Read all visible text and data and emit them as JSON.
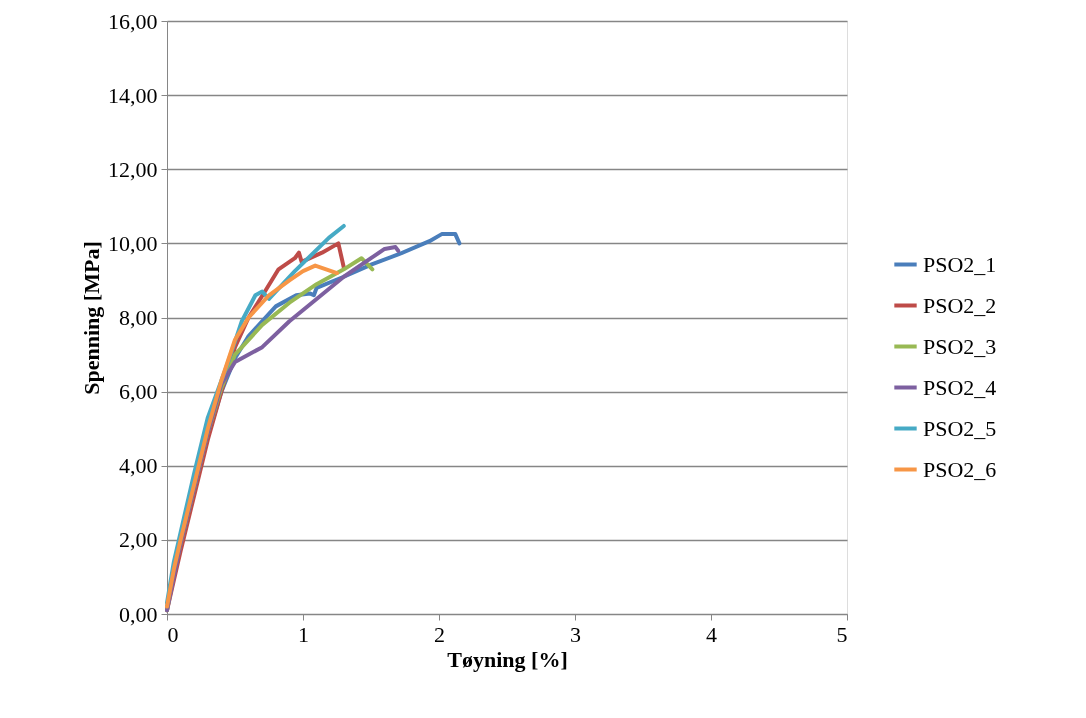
{
  "chart_data": {
    "type": "line",
    "xlabel": "Tøyning [%]",
    "ylabel": "Spenning [MPa]",
    "xlim": [
      0,
      5
    ],
    "xticks": [
      0,
      1,
      2,
      3,
      4,
      5
    ],
    "ylim": [
      0,
      16
    ],
    "yticks": [
      {
        "value": 0,
        "label": "0,00"
      },
      {
        "value": 2,
        "label": "2,00"
      },
      {
        "value": 4,
        "label": "4,00"
      },
      {
        "value": 6,
        "label": "6,00"
      },
      {
        "value": 8,
        "label": "8,00"
      },
      {
        "value": 10,
        "label": "10,00"
      },
      {
        "value": 12,
        "label": "12,00"
      },
      {
        "value": 14,
        "label": "14,00"
      },
      {
        "value": 16,
        "label": "16,00"
      }
    ],
    "grid": "y",
    "legend": "right",
    "marker": "none",
    "line_style": "solid",
    "series": [
      {
        "name": "PSO2_1",
        "color": "#4a7ebb",
        "x": [
          0,
          0.05,
          0.1,
          0.2,
          0.3,
          0.4,
          0.5,
          0.6,
          0.8,
          0.95,
          1.05,
          1.08,
          1.1,
          1.3,
          1.51,
          1.7,
          1.93,
          2.02,
          2.12,
          2.15
        ],
        "values": [
          0.2,
          1.0,
          1.8,
          3.3,
          4.8,
          6.0,
          6.9,
          7.5,
          8.3,
          8.6,
          8.65,
          8.6,
          8.8,
          9.1,
          9.44,
          9.7,
          10.06,
          10.25,
          10.25,
          10.0
        ]
      },
      {
        "name": "PSO2_2",
        "color": "#be4b48",
        "x": [
          0,
          0.05,
          0.1,
          0.2,
          0.3,
          0.4,
          0.5,
          0.6,
          0.72,
          0.82,
          0.94,
          0.97,
          0.99,
          1.14,
          1.26,
          1.3
        ],
        "values": [
          0.1,
          0.9,
          1.7,
          3.2,
          4.7,
          6.0,
          7.2,
          8.0,
          8.7,
          9.3,
          9.6,
          9.75,
          9.5,
          9.75,
          10.0,
          9.35
        ]
      },
      {
        "name": "PSO2_3",
        "color": "#98b954",
        "x": [
          0,
          0.05,
          0.1,
          0.2,
          0.3,
          0.4,
          0.5,
          0.7,
          0.9,
          1.1,
          1.3,
          1.43,
          1.51
        ],
        "values": [
          0.1,
          1.1,
          1.9,
          3.4,
          4.9,
          6.1,
          7.0,
          7.8,
          8.4,
          8.9,
          9.3,
          9.6,
          9.3
        ]
      },
      {
        "name": "PSO2_4",
        "color": "#7d60a0",
        "x": [
          0,
          0.05,
          0.1,
          0.2,
          0.3,
          0.4,
          0.5,
          0.7,
          0.9,
          1.1,
          1.3,
          1.5,
          1.6,
          1.68,
          1.7
        ],
        "values": [
          0.1,
          1.0,
          1.9,
          3.4,
          4.9,
          6.2,
          6.8,
          7.2,
          7.9,
          8.5,
          9.1,
          9.6,
          9.85,
          9.9,
          9.8
        ]
      },
      {
        "name": "PSO2_5",
        "color": "#46aac5",
        "x": [
          0,
          0.05,
          0.1,
          0.2,
          0.3,
          0.45,
          0.55,
          0.65,
          0.7,
          0.75,
          0.94,
          1.19,
          1.3
        ],
        "values": [
          0.3,
          1.4,
          2.2,
          3.8,
          5.3,
          6.8,
          7.9,
          8.6,
          8.7,
          8.5,
          9.25,
          10.15,
          10.47
        ]
      },
      {
        "name": "PSO2_6",
        "color": "#f79646",
        "x": [
          0,
          0.05,
          0.1,
          0.2,
          0.3,
          0.4,
          0.5,
          0.6,
          0.75,
          0.9,
          1.0,
          1.09,
          1.25
        ],
        "values": [
          0.2,
          1.2,
          2.0,
          3.5,
          5.0,
          6.3,
          7.4,
          8.0,
          8.6,
          9.0,
          9.25,
          9.4,
          9.2
        ]
      }
    ]
  }
}
